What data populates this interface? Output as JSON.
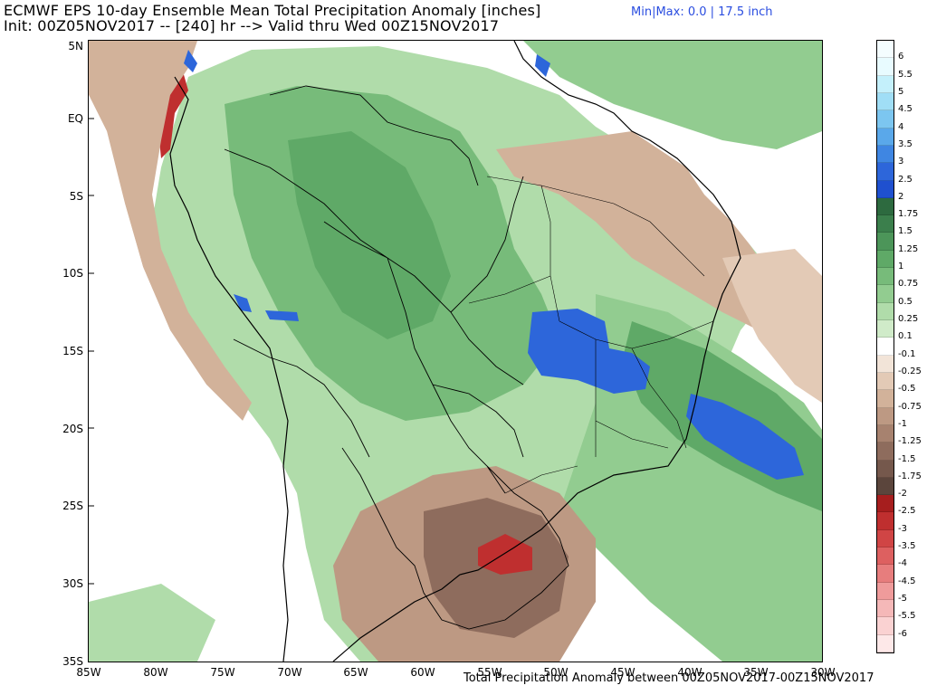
{
  "title": {
    "line1": "ECMWF EPS 10-day Ensemble Mean Total Precipitation Anomaly [inches]",
    "line2": "Init: 00Z05NOV2017 -- [240] hr --> Valid thru Wed 00Z15NOV2017",
    "minmax": "Min|Max: 0.0 | 17.5 inch",
    "minmax_color": "#2a4de0"
  },
  "map": {
    "region": "South America",
    "lat_labels": [
      "5N",
      "EQ",
      "5S",
      "10S",
      "15S",
      "20S",
      "25S",
      "30S",
      "35S"
    ],
    "lon_labels": [
      "85W",
      "80W",
      "75W",
      "70W",
      "65W",
      "60W",
      "55W",
      "50W",
      "45W",
      "40W",
      "35W",
      "30W"
    ],
    "footer": "Total Precipitation Anomaly between 00Z05NOV2017-00Z15NOV2017"
  },
  "colorbar": {
    "levels": [
      {
        "label": "6",
        "color": "#e8fbff"
      },
      {
        "label": "5.5",
        "color": "#c4f0fb"
      },
      {
        "label": "5",
        "color": "#a0def6"
      },
      {
        "label": "4.5",
        "color": "#7cc6f0"
      },
      {
        "label": "4",
        "color": "#5aa8ea"
      },
      {
        "label": "3.5",
        "color": "#3f86e2"
      },
      {
        "label": "3",
        "color": "#2d66da"
      },
      {
        "label": "2.5",
        "color": "#1f50cf"
      },
      {
        "label": "2",
        "color": "#2d6a3f"
      },
      {
        "label": "1.75",
        "color": "#3b7f4c"
      },
      {
        "label": "1.5",
        "color": "#4c9559"
      },
      {
        "label": "1.25",
        "color": "#5fa967"
      },
      {
        "label": "1",
        "color": "#77bb7a"
      },
      {
        "label": "0.75",
        "color": "#92cc90"
      },
      {
        "label": "0.5",
        "color": "#b0dcaa"
      },
      {
        "label": "0.25",
        "color": "#d0ebc9"
      },
      {
        "label": "0.1",
        "color": "#ffffff"
      },
      {
        "label": "-0.1",
        "color": "#f2e4d8"
      },
      {
        "label": "-0.25",
        "color": "#e3cab6"
      },
      {
        "label": "-0.5",
        "color": "#d2b29a"
      },
      {
        "label": "-0.75",
        "color": "#bd9983"
      },
      {
        "label": "-1",
        "color": "#a7826f"
      },
      {
        "label": "-1.25",
        "color": "#8e6c5d"
      },
      {
        "label": "-1.5",
        "color": "#75584c"
      },
      {
        "label": "-1.75",
        "color": "#5b453c"
      },
      {
        "label": "-2",
        "color": "#a61e1e"
      },
      {
        "label": "-2.5",
        "color": "#bf2f2f"
      },
      {
        "label": "-3",
        "color": "#d04545"
      },
      {
        "label": "-3.5",
        "color": "#dd6060"
      },
      {
        "label": "-4",
        "color": "#e77d7d"
      },
      {
        "label": "-4.5",
        "color": "#ef9b9b"
      },
      {
        "label": "-5",
        "color": "#f5b8b8"
      },
      {
        "label": "-5.5",
        "color": "#fad2d2"
      },
      {
        "label": "-6",
        "color": "#fde8e8"
      }
    ]
  }
}
